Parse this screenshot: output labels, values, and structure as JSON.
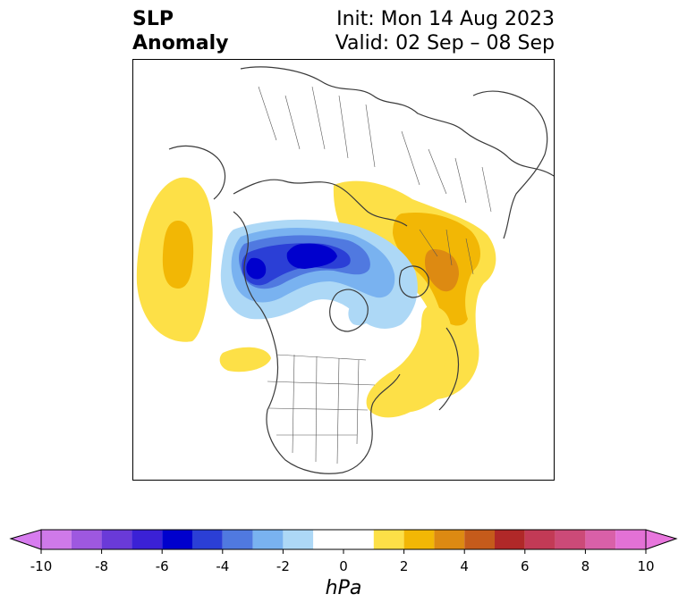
{
  "title": {
    "left_line1": "SLP",
    "left_line2": "Anomaly",
    "right_line1": "Init: Mon 14 Aug 2023",
    "right_line2": "Valid: 02 Sep – 08 Sep"
  },
  "colorbar": {
    "unit": "hPa",
    "extend": "both",
    "ticks": [
      "-10",
      "-8",
      "-6",
      "-4",
      "-2",
      "0",
      "2",
      "4",
      "6",
      "8",
      "10"
    ],
    "levels": [
      -10,
      -9,
      -8,
      -7,
      -6,
      -5,
      -4,
      -3,
      -2,
      -1,
      1,
      2,
      3,
      4,
      5,
      6,
      7,
      8,
      9,
      10
    ],
    "colors": [
      "#cf79e9",
      "#9e58e0",
      "#6a3ad8",
      "#3b21d6",
      "#0000cd",
      "#2b3fd6",
      "#5079e0",
      "#79b2f0",
      "#add8f6",
      "#ffffff",
      "#fde047",
      "#f2b705",
      "#dd8a12",
      "#c55b1b",
      "#b02828",
      "#c23a56",
      "#cc4a78",
      "#d960a8",
      "#e371d6"
    ],
    "under_color": "#d77cef",
    "over_color": "#e876dd"
  },
  "map": {
    "projection": "north-polar-stereographic",
    "field": "sea level pressure anomaly",
    "land_color": "#ffffff",
    "coast_color": "#3a3a3a"
  }
}
